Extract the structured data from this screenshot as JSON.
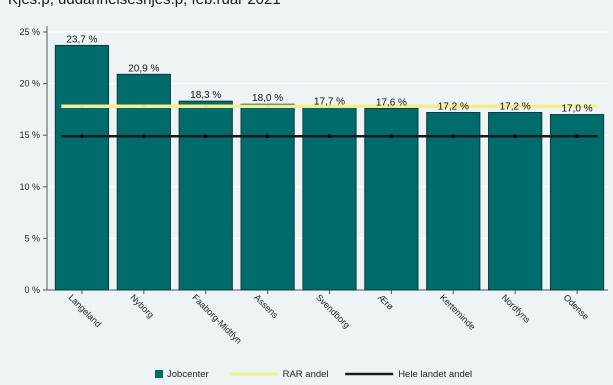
{
  "header": {
    "cut_title": "Kjes.p, uddannelsesnjes.p, feb.ruar 2021"
  },
  "colors": {
    "bar": "#006b6b",
    "bar_stroke": "#0b3d3d",
    "rar_line": "#f2ee8c",
    "national_line": "#1a1a1a",
    "grid": "#ffffff"
  },
  "chart_data": {
    "type": "bar",
    "categories": [
      "Langeland",
      "Nyborg",
      "Faaborg-Midtfyn",
      "Assens",
      "Svendborg",
      "Ærø",
      "Kerteminde",
      "Nordfyns",
      "Odense"
    ],
    "series": [
      {
        "name": "Jobcenter",
        "values": [
          23.7,
          20.9,
          18.3,
          18.0,
          17.7,
          17.6,
          17.2,
          17.2,
          17.0
        ]
      }
    ],
    "data_labels": [
      "23,7 %",
      "20,9 %",
      "18,3 %",
      "18,0 %",
      "17,7 %",
      "17,6 %",
      "17,2 %",
      "17,2 %",
      "17,0 %"
    ],
    "reference_lines": [
      {
        "name": "RAR andel",
        "value": 17.8
      },
      {
        "name": "Hele landet andel",
        "value": 14.9
      }
    ],
    "ylim": [
      0,
      25
    ],
    "yticks": [
      0,
      5,
      10,
      15,
      20,
      25
    ],
    "ytick_labels": [
      "0 %",
      "5 %",
      "10 %",
      "15 %",
      "20 %",
      "25 %"
    ],
    "grid": true,
    "legend_position": "bottom",
    "legend": [
      {
        "label": "Jobcenter",
        "kind": "box"
      },
      {
        "label": "RAR andel",
        "kind": "line"
      },
      {
        "label": "Hele landet andel",
        "kind": "line"
      }
    ]
  }
}
